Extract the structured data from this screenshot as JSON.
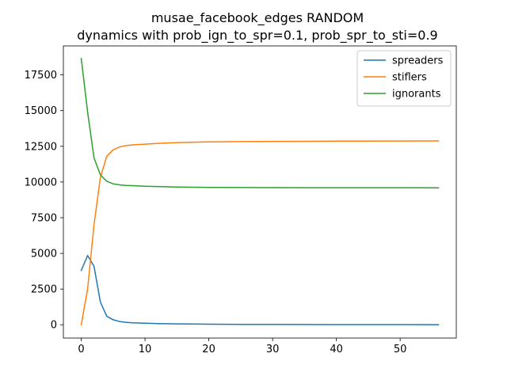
{
  "chart_data": {
    "type": "line",
    "title": "musae_facebook_edges RANDOM",
    "subtitle": "dynamics with prob_ign_to_spr=0.1, prob_spr_to_sti=0.9",
    "xlabel": "",
    "ylabel": "",
    "xlim": [
      -2.8,
      58.8
    ],
    "ylim": [
      -930,
      19530
    ],
    "x_ticks": [
      0,
      10,
      20,
      30,
      40,
      50
    ],
    "y_ticks": [
      0,
      2500,
      5000,
      7500,
      10000,
      12500,
      15000,
      17500
    ],
    "legend_position": "top-right",
    "grid": false,
    "series": [
      {
        "name": "spreaders",
        "color": "#1f77b4",
        "x": [
          0,
          1,
          2,
          3,
          4,
          5,
          6,
          7,
          8,
          10,
          12,
          15,
          20,
          25,
          30,
          35,
          40,
          45,
          50,
          56
        ],
        "values": [
          3800,
          4850,
          4100,
          1600,
          600,
          350,
          230,
          170,
          140,
          110,
          80,
          60,
          40,
          30,
          25,
          20,
          15,
          12,
          10,
          8
        ]
      },
      {
        "name": "stiflers",
        "color": "#ff7f0e",
        "x": [
          0,
          1,
          2,
          3,
          4,
          5,
          6,
          7,
          8,
          10,
          12,
          15,
          20,
          25,
          30,
          35,
          40,
          45,
          50,
          56
        ],
        "values": [
          0,
          2500,
          7000,
          10300,
          11800,
          12250,
          12450,
          12550,
          12600,
          12650,
          12700,
          12760,
          12810,
          12830,
          12840,
          12850,
          12860,
          12865,
          12870,
          12875
        ]
      },
      {
        "name": "ignorants",
        "color": "#2ca02c",
        "x": [
          0,
          1,
          2,
          3,
          4,
          5,
          6,
          7,
          8,
          10,
          12,
          15,
          20,
          25,
          30,
          35,
          40,
          45,
          50,
          56
        ],
        "values": [
          18650,
          14900,
          11700,
          10500,
          10050,
          9870,
          9800,
          9760,
          9740,
          9700,
          9680,
          9650,
          9620,
          9610,
          9605,
          9600,
          9598,
          9596,
          9595,
          9592
        ]
      }
    ]
  }
}
